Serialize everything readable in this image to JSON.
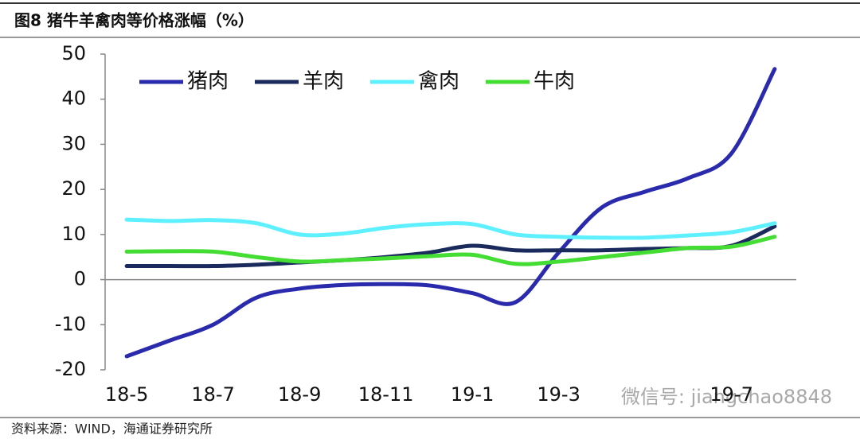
{
  "chart_data": {
    "type": "line",
    "title": "图8  猪牛羊禽肉等价格涨幅（%）",
    "source": "资料来源：WIND，海通证券研究所",
    "annotation": "微信号: jiangchao8848",
    "categories": [
      "18-5",
      null,
      "18-7",
      null,
      "18-9",
      null,
      "18-11",
      null,
      "19-1",
      null,
      "19-3",
      null,
      null,
      null,
      "19-7",
      null
    ],
    "series": [
      {
        "name": "猪肉",
        "color": "#2a2aad",
        "values": [
          -17,
          -13.5,
          -10,
          -4,
          -2,
          -1.2,
          -1,
          -1.3,
          -3,
          -5,
          6,
          16,
          19.5,
          22.5,
          28,
          46.7
        ]
      },
      {
        "name": "羊肉",
        "color": "#1b2a5c",
        "values": [
          3,
          3,
          3,
          3.3,
          3.8,
          4.3,
          5,
          6,
          7.5,
          6.5,
          6.5,
          6.5,
          6.8,
          7,
          7.5,
          11.8
        ]
      },
      {
        "name": "禽肉",
        "color": "#5ff0ff",
        "values": [
          13.3,
          13,
          13.2,
          12.5,
          10,
          10.2,
          11.5,
          12.3,
          12.3,
          10,
          9.5,
          9.3,
          9.3,
          9.8,
          10.5,
          12.5
        ]
      },
      {
        "name": "牛肉",
        "color": "#44dd33",
        "values": [
          6.2,
          6.3,
          6.2,
          5,
          4,
          4.3,
          4.7,
          5.2,
          5.5,
          3.5,
          4,
          5,
          6,
          7,
          7.3,
          9.5
        ]
      }
    ],
    "ylim": [
      -20,
      50
    ],
    "yticks": [
      -20,
      -10,
      0,
      10,
      20,
      30,
      40,
      50
    ],
    "legend": "top-left"
  }
}
